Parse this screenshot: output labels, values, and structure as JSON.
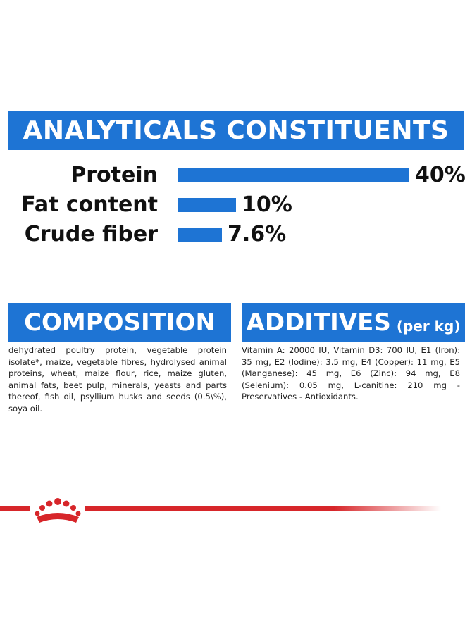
{
  "analytics": {
    "title": "ANALYTICALS CONSTITUENTS",
    "rows": [
      {
        "label": "Protein",
        "value_text": "40%",
        "value": 40
      },
      {
        "label": "Fat content",
        "value_text": "10%",
        "value": 10
      },
      {
        "label": "Crude fiber",
        "value_text": "7.6%",
        "value": 7.6
      }
    ]
  },
  "composition": {
    "title": "COMPOSITION",
    "text": "dehydrated poultry protein, vegetable protein isolate*, maize, vegetable fibres, hydrolysed animal proteins, wheat, maize flour, rice, maize gluten, animal fats, beet pulp, minerals, yeasts and parts thereof, fish oil, psyllium husks and seeds (0.5\\%), soya oil."
  },
  "additives": {
    "title": "ADDITIVES",
    "subtitle": "(per kg)",
    "text": "Vitamin A: 20000 IU, Vitamin D3: 700 IU, E1 (Iron): 35 mg, E2 (Iodine): 3.5 mg, E4 (Copper): 11 mg, E5 (Manganese): 45 mg, E6 (Zinc): 94 mg, E8 (Selenium): 0.05 mg, L-canitine: 210 mg - Preservatives - Antioxidants."
  },
  "colors": {
    "accent_blue": "#1e74d4",
    "brand_red": "#d7262a"
  },
  "footer": {
    "logo_icon": "royal-crown-icon"
  }
}
